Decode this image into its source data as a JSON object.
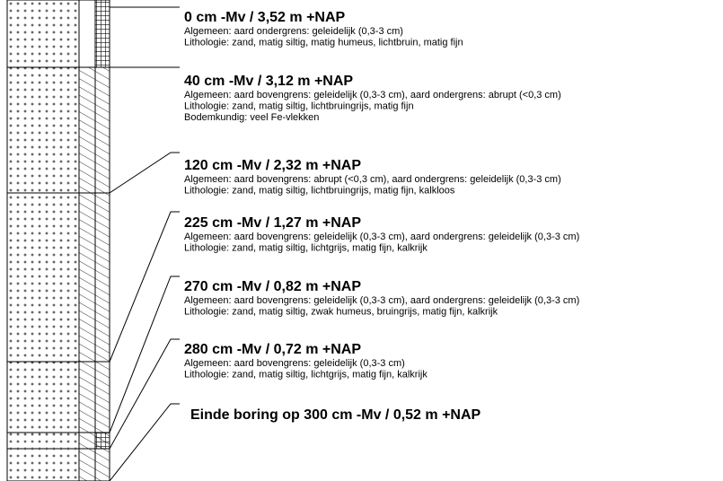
{
  "layers": [
    {
      "heading": "0 cm -Mv / 3,52 m +NAP",
      "lines": [
        "Algemeen: aard ondergrens: geleidelijk (0,3-3 cm)",
        "Lithologie: zand, matig siltig, matig humeus, lichtbruin, matig fijn"
      ]
    },
    {
      "heading": "40 cm -Mv / 3,12 m +NAP",
      "lines": [
        "Algemeen: aard bovengrens: geleidelijk (0,3-3 cm), aard ondergrens: abrupt (<0,3 cm)",
        "Lithologie: zand, matig siltig, lichtbruingrijs, matig fijn",
        "Bodemkundig: veel Fe-vlekken"
      ]
    },
    {
      "heading": "120 cm -Mv / 2,32 m +NAP",
      "lines": [
        "Algemeen: aard bovengrens: abrupt (<0,3 cm), aard ondergrens: geleidelijk (0,3-3 cm)",
        "Lithologie: zand, matig siltig, lichtbruingrijs, matig fijn, kalkloos"
      ]
    },
    {
      "heading": "225 cm -Mv / 1,27 m +NAP",
      "lines": [
        "Algemeen: aard bovengrens: geleidelijk (0,3-3 cm), aard ondergrens: geleidelijk (0,3-3 cm)",
        "Lithologie: zand, matig siltig, lichtgrijs, matig fijn, kalkrijk"
      ]
    },
    {
      "heading": "270 cm -Mv / 0,82 m +NAP",
      "lines": [
        "Algemeen: aard bovengrens: geleidelijk (0,3-3 cm), aard ondergrens: geleidelijk (0,3-3 cm)",
        "Lithologie: zand, matig siltig, zwak humeus, bruingrijs, matig fijn, kalkrijk"
      ]
    },
    {
      "heading": "280 cm -Mv / 0,72 m +NAP",
      "lines": [
        "Algemeen: aard bovengrens: geleidelijk (0,3-3 cm)",
        "Lithologie: zand, matig siltig, lichtgrijs, matig fijn, kalkrijk"
      ]
    }
  ],
  "end": "Einde boring op 300 cm -Mv / 0,52 m +NAP"
}
